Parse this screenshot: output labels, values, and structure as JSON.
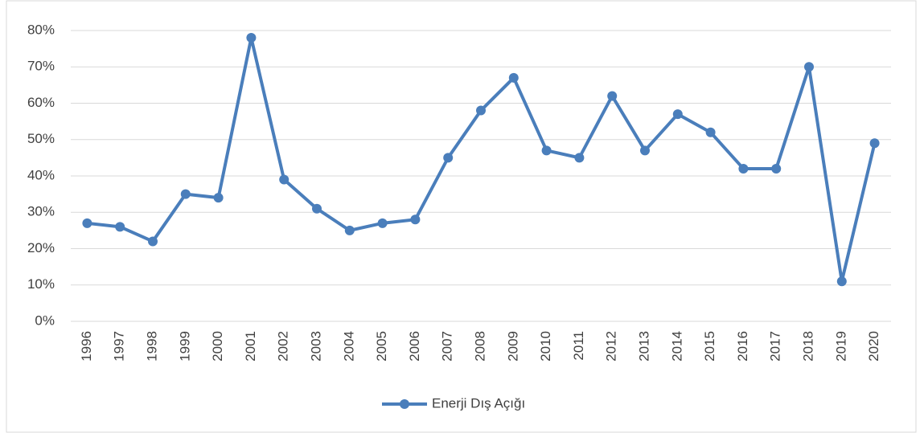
{
  "chart_data": {
    "type": "line",
    "categories": [
      "1996",
      "1997",
      "1998",
      "1999",
      "2000",
      "2001",
      "2002",
      "2003",
      "2004",
      "2005",
      "2006",
      "2007",
      "2008",
      "2009",
      "2010",
      "2011",
      "2012",
      "2013",
      "2014",
      "2015",
      "2016",
      "2017",
      "2018",
      "2019",
      "2020"
    ],
    "series": [
      {
        "name": "Enerji Dış Açığı",
        "color": "#4a7ebb",
        "values": [
          27,
          26,
          22,
          35,
          34,
          78,
          39,
          31,
          25,
          27,
          28,
          45,
          58,
          67,
          47,
          45,
          62,
          47,
          57,
          52,
          42,
          42,
          70,
          11,
          49
        ]
      }
    ],
    "ylim": [
      0,
      80
    ],
    "yticks": [
      {
        "value": 0,
        "label": "0%"
      },
      {
        "value": 10,
        "label": "10%"
      },
      {
        "value": 20,
        "label": "20%"
      },
      {
        "value": 30,
        "label": "30%"
      },
      {
        "value": 40,
        "label": "40%"
      },
      {
        "value": 50,
        "label": "50%"
      },
      {
        "value": 60,
        "label": "60%"
      },
      {
        "value": 70,
        "label": "70%"
      },
      {
        "value": 80,
        "label": "80%"
      }
    ],
    "grid": true,
    "legend": "bottom"
  }
}
